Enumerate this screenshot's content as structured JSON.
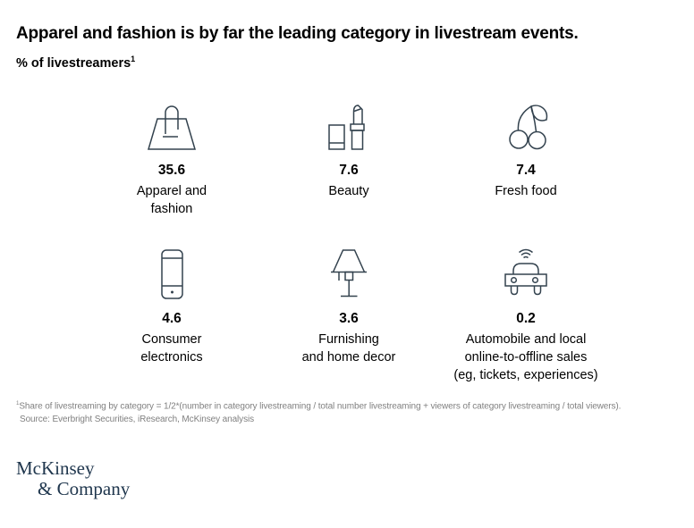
{
  "header": {
    "title": "Apparel and fashion is by far the leading category in livestream events.",
    "subtitle_text": "% of livestreamers",
    "subtitle_superscript": "1"
  },
  "categories": [
    {
      "icon": "handbag-icon",
      "value": "35.6",
      "label_lines": [
        "Apparel and",
        "fashion"
      ]
    },
    {
      "icon": "lipstick-icon",
      "value": "7.6",
      "label_lines": [
        "Beauty"
      ]
    },
    {
      "icon": "cherries-icon",
      "value": "7.4",
      "label_lines": [
        "Fresh food"
      ]
    },
    {
      "icon": "smartphone-icon",
      "value": "4.6",
      "label_lines": [
        "Consumer",
        "electronics"
      ]
    },
    {
      "icon": "lamp-icon",
      "value": "3.6",
      "label_lines": [
        "Furnishing",
        "and home decor"
      ]
    },
    {
      "icon": "car-wifi-icon",
      "value": "0.2",
      "label_lines": [
        "Automobile and local",
        "online-to-offline sales",
        "(eg, tickets, experiences)"
      ]
    }
  ],
  "footnote": {
    "superscript": "1",
    "text": "Share of livestreaming by category = 1/2*(number in category livestreaming / total number livestreaming + viewers of category livestreaming / total viewers).",
    "source": "Source: Everbright Securities, iResearch, McKinsey analysis"
  },
  "logo": {
    "line1": "McKinsey",
    "line2": "& Company"
  },
  "colors": {
    "icon_stroke": "#33424e",
    "text": "#000000",
    "footnote": "#808080",
    "logo": "#20374e"
  },
  "chart_data": {
    "type": "table",
    "title": "Apparel and fashion is by far the leading category in livestream events.",
    "value_unit": "% of livestreamers",
    "categories": [
      "Apparel and fashion",
      "Beauty",
      "Fresh food",
      "Consumer electronics",
      "Furnishing and home decor",
      "Automobile and local online-to-offline sales (eg, tickets, experiences)"
    ],
    "values": [
      35.6,
      7.6,
      7.4,
      4.6,
      3.6,
      0.2
    ],
    "layout": "pictogram grid, 2 rows x 3 columns, icons above bold values above labels",
    "legend": "none",
    "grid": "off"
  }
}
